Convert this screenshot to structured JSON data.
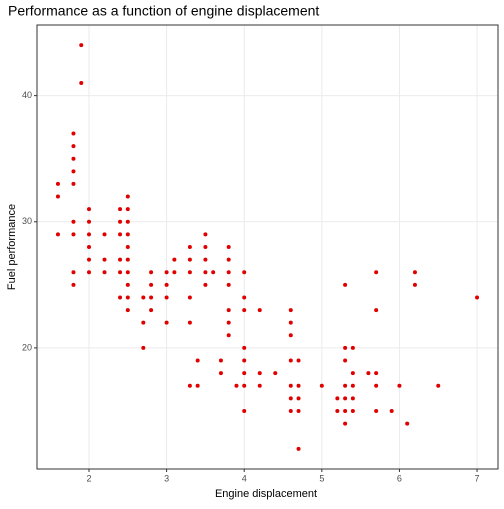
{
  "chart_data": {
    "type": "scatter",
    "title": "Performance as a function of engine displacement",
    "x_label": "Engine displacement",
    "y_label": "Fuel performance",
    "color": "#e00000",
    "grid": true,
    "xlim": [
      1.33,
      7.27
    ],
    "ylim": [
      10.4,
      45.6
    ],
    "xticks": [
      2,
      3,
      4,
      5,
      6,
      7
    ],
    "yticks": [
      20,
      30,
      40
    ],
    "x": [
      1.6,
      1.6,
      1.6,
      1.8,
      1.8,
      1.8,
      1.8,
      1.8,
      1.8,
      1.8,
      1.8,
      1.8,
      1.9,
      1.9,
      2.0,
      2.0,
      2.0,
      2.0,
      2.0,
      2.0,
      2.2,
      2.2,
      2.2,
      2.4,
      2.4,
      2.4,
      2.4,
      2.4,
      2.4,
      2.5,
      2.5,
      2.5,
      2.5,
      2.5,
      2.5,
      2.5,
      2.5,
      2.5,
      2.5,
      2.7,
      2.7,
      2.7,
      2.8,
      2.8,
      2.8,
      2.8,
      3.0,
      3.0,
      3.0,
      3.0,
      3.1,
      3.1,
      3.3,
      3.3,
      3.3,
      3.3,
      3.3,
      3.3,
      3.4,
      3.4,
      3.5,
      3.5,
      3.5,
      3.5,
      3.5,
      3.6,
      3.7,
      3.7,
      3.8,
      3.8,
      3.8,
      3.8,
      3.8,
      3.8,
      3.8,
      3.9,
      4.0,
      4.0,
      4.0,
      4.0,
      4.0,
      4.0,
      4.0,
      4.0,
      4.2,
      4.2,
      4.2,
      4.4,
      4.6,
      4.6,
      4.6,
      4.6,
      4.6,
      4.6,
      4.6,
      4.7,
      4.7,
      4.7,
      4.7,
      4.7,
      5.0,
      5.2,
      5.2,
      5.3,
      5.3,
      5.3,
      5.3,
      5.3,
      5.3,
      5.3,
      5.4,
      5.4,
      5.4,
      5.4,
      5.4,
      5.6,
      5.7,
      5.7,
      5.7,
      5.7,
      5.7,
      5.9,
      6.0,
      6.1,
      6.2,
      6.2,
      6.5,
      7.0
    ],
    "values": [
      33,
      32,
      29,
      37,
      36,
      35,
      34,
      33,
      30,
      29,
      26,
      25,
      44,
      41,
      31,
      30,
      29,
      28,
      27,
      26,
      29,
      27,
      26,
      31,
      30,
      29,
      27,
      26,
      24,
      32,
      31,
      30,
      29,
      28,
      27,
      26,
      25,
      24,
      23,
      24,
      22,
      20,
      26,
      25,
      24,
      23,
      26,
      25,
      24,
      22,
      27,
      26,
      28,
      27,
      26,
      24,
      22,
      17,
      19,
      17,
      29,
      28,
      27,
      26,
      25,
      26,
      19,
      18,
      28,
      27,
      26,
      25,
      23,
      22,
      21,
      17,
      26,
      24,
      23,
      20,
      19,
      18,
      17,
      15,
      23,
      18,
      17,
      18,
      23,
      22,
      21,
      19,
      17,
      16,
      15,
      19,
      17,
      16,
      15,
      12,
      17,
      16,
      15,
      25,
      20,
      19,
      17,
      16,
      15,
      14,
      20,
      18,
      17,
      16,
      15,
      18,
      26,
      23,
      18,
      17,
      15,
      15,
      17,
      14,
      26,
      25,
      17,
      24
    ]
  }
}
